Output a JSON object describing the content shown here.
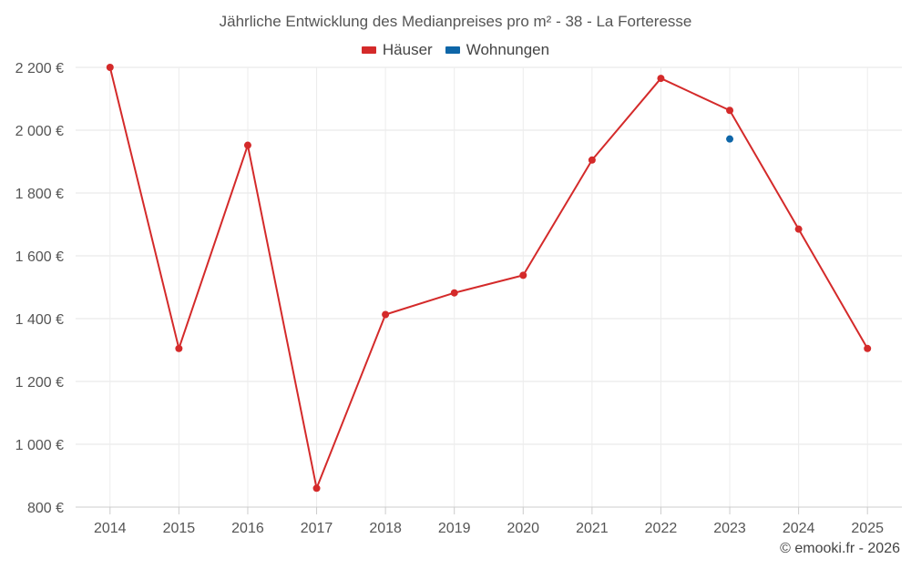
{
  "chart_data": {
    "type": "line",
    "title": "Jährliche Entwicklung des Medianpreises pro m² - 38 - La Forteresse",
    "categories": [
      "2014",
      "2015",
      "2016",
      "2017",
      "2018",
      "2019",
      "2020",
      "2021",
      "2022",
      "2023",
      "2024",
      "2025"
    ],
    "series": [
      {
        "name": "Häuser",
        "color": "#d42a2a",
        "values": [
          2200,
          1305,
          1952,
          860,
          1413,
          1482,
          1538,
          1905,
          2165,
          2063,
          1685,
          1305
        ]
      },
      {
        "name": "Wohnungen",
        "color": "#0e66a8",
        "values": [
          null,
          null,
          null,
          null,
          null,
          null,
          null,
          null,
          null,
          1972,
          null,
          null
        ]
      }
    ],
    "ylim": [
      800,
      2200
    ],
    "yticks": [
      800,
      1000,
      1200,
      1400,
      1600,
      1800,
      2000,
      2200
    ],
    "ytick_labels": [
      "800 €",
      "1 000 €",
      "1 200 €",
      "1 400 €",
      "1 600 €",
      "1 800 €",
      "2 000 €",
      "2 200 €"
    ],
    "xlabel": "",
    "ylabel": "",
    "grid": true,
    "legend_position": "top-center"
  },
  "credit": "© emooki.fr - 2026"
}
